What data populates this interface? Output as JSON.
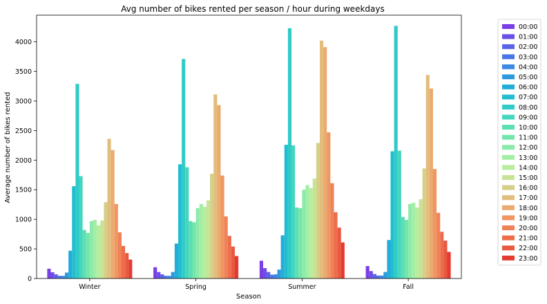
{
  "chart_data": {
    "type": "bar",
    "title": "Avg number of bikes rented per season / hour during weekdays",
    "xlabel": "Season",
    "ylabel": "Average number of bikes rented",
    "categories": [
      "Winter",
      "Spring",
      "Summer",
      "Fall"
    ],
    "ylim": [
      0,
      4450
    ],
    "yticks": [
      0,
      500,
      1000,
      1500,
      2000,
      2500,
      3000,
      3500,
      4000
    ],
    "grid": false,
    "legend_position": "outside-right",
    "series": [
      {
        "name": "00:00",
        "color": "#7a3ee6",
        "values": [
          165,
          190,
          300,
          210
        ]
      },
      {
        "name": "01:00",
        "color": "#6a50e8",
        "values": [
          105,
          110,
          175,
          125
        ]
      },
      {
        "name": "02:00",
        "color": "#5a62e8",
        "values": [
          70,
          70,
          110,
          75
        ]
      },
      {
        "name": "03:00",
        "color": "#4a75e6",
        "values": [
          45,
          45,
          65,
          50
        ]
      },
      {
        "name": "04:00",
        "color": "#3c88e2",
        "values": [
          45,
          45,
          70,
          50
        ]
      },
      {
        "name": "05:00",
        "color": "#2e9ade",
        "values": [
          100,
          110,
          150,
          110
        ]
      },
      {
        "name": "06:00",
        "color": "#24acd8",
        "values": [
          470,
          590,
          730,
          650
        ]
      },
      {
        "name": "07:00",
        "color": "#22bdd0",
        "values": [
          1560,
          1930,
          2260,
          2150
        ]
      },
      {
        "name": "08:00",
        "color": "#2fcbc8",
        "values": [
          3290,
          3710,
          4230,
          4270
        ]
      },
      {
        "name": "09:00",
        "color": "#45d6be",
        "values": [
          1730,
          1880,
          2250,
          2160
        ]
      },
      {
        "name": "10:00",
        "color": "#5cdfb4",
        "values": [
          820,
          970,
          1200,
          1040
        ]
      },
      {
        "name": "11:00",
        "color": "#74e6ab",
        "values": [
          770,
          950,
          1190,
          990
        ]
      },
      {
        "name": "12:00",
        "color": "#8cebaa",
        "values": [
          970,
          1190,
          1500,
          1260
        ]
      },
      {
        "name": "13:00",
        "color": "#a2eea5",
        "values": [
          990,
          1260,
          1580,
          1280
        ]
      },
      {
        "name": "14:00",
        "color": "#b7ed9d",
        "values": [
          900,
          1210,
          1530,
          1200
        ]
      },
      {
        "name": "15:00",
        "color": "#c8e396",
        "values": [
          980,
          1320,
          1690,
          1340
        ]
      },
      {
        "name": "16:00",
        "color": "#d6cf88",
        "values": [
          1290,
          1770,
          2290,
          1860
        ]
      },
      {
        "name": "17:00",
        "color": "#e2bd7c",
        "values": [
          2360,
          3110,
          4020,
          3440
        ]
      },
      {
        "name": "18:00",
        "color": "#ebaa6f",
        "values": [
          2170,
          2930,
          3910,
          3210
        ]
      },
      {
        "name": "19:00",
        "color": "#ef9663",
        "values": [
          1260,
          1740,
          2470,
          1850
        ]
      },
      {
        "name": "20:00",
        "color": "#ef8257",
        "values": [
          780,
          1050,
          1610,
          1110
        ]
      },
      {
        "name": "21:00",
        "color": "#ed6d4b",
        "values": [
          550,
          720,
          1120,
          790
        ]
      },
      {
        "name": "22:00",
        "color": "#e95840",
        "values": [
          430,
          540,
          860,
          640
        ]
      },
      {
        "name": "23:00",
        "color": "#e43b30",
        "values": [
          320,
          380,
          610,
          450
        ]
      }
    ]
  }
}
